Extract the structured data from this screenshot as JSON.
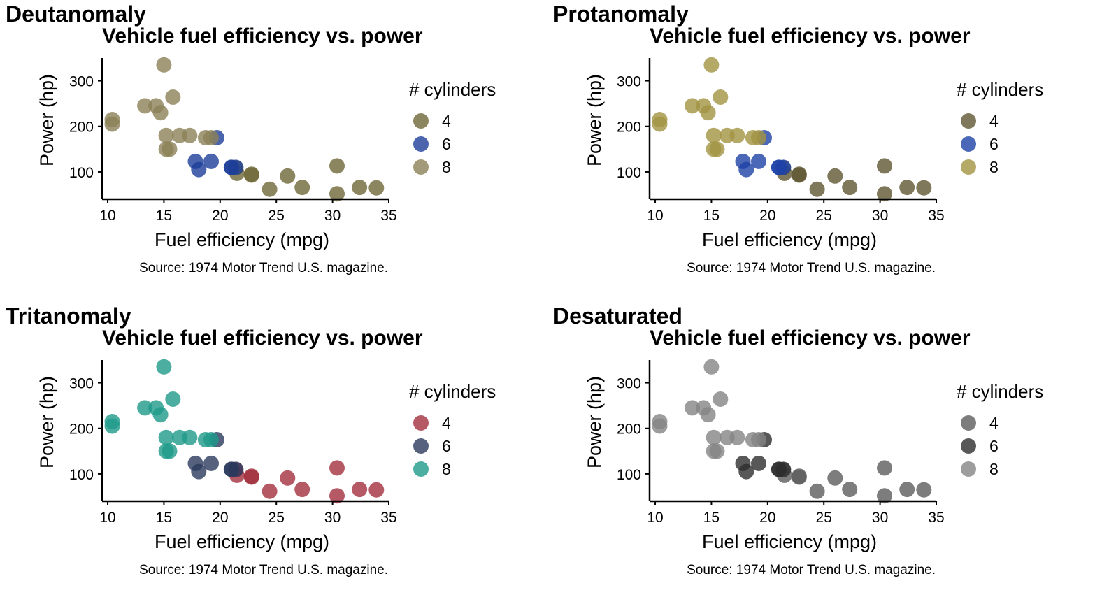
{
  "chart_data": [
    {
      "type": "scatter",
      "panel_label": "Deutanomaly",
      "title": "Vehicle fuel efficiency vs. power",
      "xlabel": "Fuel efficiency (mpg)",
      "ylabel": "Power (hp)",
      "caption": "Source: 1974 Motor Trend U.S. magazine.",
      "legend_title": "# cylinders",
      "legend_position": "right",
      "grid": false,
      "xlim": [
        9.5,
        35
      ],
      "ylim": [
        40,
        350
      ],
      "x_ticks": [
        "10",
        "15",
        "20",
        "25",
        "30",
        "35"
      ],
      "y_ticks": [
        "100",
        "200",
        "300"
      ],
      "series": [
        {
          "name": "4",
          "color": "#6f6838",
          "x": [
            22.8,
            24.4,
            22.8,
            32.4,
            30.4,
            33.9,
            21.5,
            27.3,
            26.0,
            30.4,
            21.4
          ],
          "y": [
            93,
            62,
            95,
            66,
            52,
            65,
            97,
            66,
            91,
            113,
            109
          ]
        },
        {
          "name": "6",
          "color": "#1d3f99",
          "x": [
            21.0,
            21.0,
            21.4,
            18.1,
            19.2,
            17.8,
            19.7
          ],
          "y": [
            110,
            110,
            110,
            105,
            123,
            123,
            175
          ]
        },
        {
          "name": "8",
          "color": "#8b8157",
          "x": [
            18.7,
            14.3,
            16.4,
            17.3,
            15.2,
            10.4,
            10.4,
            14.7,
            15.5,
            15.2,
            13.3,
            19.2,
            15.8,
            15.0
          ],
          "y": [
            175,
            245,
            180,
            180,
            180,
            205,
            215,
            230,
            150,
            150,
            245,
            175,
            264,
            335
          ]
        }
      ]
    },
    {
      "type": "scatter",
      "panel_label": "Protanomaly",
      "title": "Vehicle fuel efficiency vs. power",
      "xlabel": "Fuel efficiency (mpg)",
      "ylabel": "Power (hp)",
      "caption": "Source: 1974 Motor Trend U.S. magazine.",
      "legend_title": "# cylinders",
      "legend_position": "right",
      "grid": false,
      "xlim": [
        9.5,
        35
      ],
      "ylim": [
        40,
        350
      ],
      "x_ticks": [
        "10",
        "15",
        "20",
        "25",
        "30",
        "35"
      ],
      "y_ticks": [
        "100",
        "200",
        "300"
      ],
      "series": [
        {
          "name": "4",
          "color": "#5f5632",
          "x": [
            22.8,
            24.4,
            22.8,
            32.4,
            30.4,
            33.9,
            21.5,
            27.3,
            26.0,
            30.4,
            21.4
          ],
          "y": [
            93,
            62,
            95,
            66,
            52,
            65,
            97,
            66,
            91,
            113,
            109
          ]
        },
        {
          "name": "6",
          "color": "#1e42a6",
          "x": [
            21.0,
            21.0,
            21.4,
            18.1,
            19.2,
            17.8,
            19.7
          ],
          "y": [
            110,
            110,
            110,
            105,
            123,
            123,
            175
          ]
        },
        {
          "name": "8",
          "color": "#a39442",
          "x": [
            18.7,
            14.3,
            16.4,
            17.3,
            15.2,
            10.4,
            10.4,
            14.7,
            15.5,
            15.2,
            13.3,
            19.2,
            15.8,
            15.0
          ],
          "y": [
            175,
            245,
            180,
            180,
            180,
            205,
            215,
            230,
            150,
            150,
            245,
            175,
            264,
            335
          ]
        }
      ]
    },
    {
      "type": "scatter",
      "panel_label": "Tritanomaly",
      "title": "Vehicle fuel efficiency vs. power",
      "xlabel": "Fuel efficiency (mpg)",
      "ylabel": "Power (hp)",
      "caption": "Source: 1974 Motor Trend U.S. magazine.",
      "legend_title": "# cylinders",
      "legend_position": "right",
      "grid": false,
      "xlim": [
        9.5,
        35
      ],
      "ylim": [
        40,
        350
      ],
      "x_ticks": [
        "10",
        "15",
        "20",
        "25",
        "30",
        "35"
      ],
      "y_ticks": [
        "100",
        "200",
        "300"
      ],
      "series": [
        {
          "name": "4",
          "color": "#a3303f",
          "x": [
            22.8,
            24.4,
            22.8,
            32.4,
            30.4,
            33.9,
            21.5,
            27.3,
            26.0,
            30.4,
            21.4
          ],
          "y": [
            93,
            62,
            95,
            66,
            52,
            65,
            97,
            66,
            91,
            113,
            109
          ]
        },
        {
          "name": "6",
          "color": "#2a3a5c",
          "x": [
            21.0,
            21.0,
            21.4,
            18.1,
            19.2,
            17.8,
            19.7
          ],
          "y": [
            110,
            110,
            110,
            105,
            123,
            123,
            175
          ]
        },
        {
          "name": "8",
          "color": "#1e9a8a",
          "x": [
            18.7,
            14.3,
            16.4,
            17.3,
            15.2,
            10.4,
            10.4,
            14.7,
            15.5,
            15.2,
            13.3,
            19.2,
            15.8,
            15.0
          ],
          "y": [
            175,
            245,
            180,
            180,
            180,
            205,
            215,
            230,
            150,
            150,
            245,
            175,
            264,
            335
          ]
        }
      ]
    },
    {
      "type": "scatter",
      "panel_label": "Desaturated",
      "title": "Vehicle fuel efficiency vs. power",
      "xlabel": "Fuel efficiency (mpg)",
      "ylabel": "Power (hp)",
      "caption": "Source: 1974 Motor Trend U.S. magazine.",
      "legend_title": "# cylinders",
      "legend_position": "right",
      "grid": false,
      "xlim": [
        9.5,
        35
      ],
      "ylim": [
        40,
        350
      ],
      "x_ticks": [
        "10",
        "15",
        "20",
        "25",
        "30",
        "35"
      ],
      "y_ticks": [
        "100",
        "200",
        "300"
      ],
      "series": [
        {
          "name": "4",
          "color": "#5c5c5c",
          "x": [
            22.8,
            24.4,
            22.8,
            32.4,
            30.4,
            33.9,
            21.5,
            27.3,
            26.0,
            30.4,
            21.4
          ],
          "y": [
            93,
            62,
            95,
            66,
            52,
            65,
            97,
            66,
            91,
            113,
            109
          ]
        },
        {
          "name": "6",
          "color": "#2e2e2e",
          "x": [
            21.0,
            21.0,
            21.4,
            18.1,
            19.2,
            17.8,
            19.7
          ],
          "y": [
            110,
            110,
            110,
            105,
            123,
            123,
            175
          ]
        },
        {
          "name": "8",
          "color": "#858585",
          "x": [
            18.7,
            14.3,
            16.4,
            17.3,
            15.2,
            10.4,
            10.4,
            14.7,
            15.5,
            15.2,
            13.3,
            19.2,
            15.8,
            15.0
          ],
          "y": [
            175,
            245,
            180,
            180,
            180,
            205,
            215,
            230,
            150,
            150,
            245,
            175,
            264,
            335
          ]
        }
      ]
    }
  ]
}
